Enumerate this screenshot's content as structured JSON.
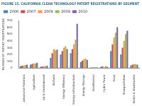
{
  "chart_data": {
    "type": "bar",
    "title": "FIGURE 15. CALIFORNIA CLEAN TECHNOLOGY PATENT REGISTRATIONS BY SEGMENT",
    "y_label": "NUMBER OF PATENT REGISTRATIONS",
    "categories": [
      "Advanced Materials",
      "Agriculture",
      "Air & Environment",
      "Biofuels",
      "Energy Efficiency",
      "Energy Infrastructure",
      "Energy Storage",
      "Geothermal",
      "Hydro Power",
      "Solar",
      "Transportation",
      "Water & Wastewater"
    ],
    "series": [
      {
        "name": "2006",
        "color": "#4f81bd",
        "values": [
          30,
          50,
          20,
          150,
          200,
          220,
          90,
          10,
          20,
          250,
          200,
          40
        ]
      },
      {
        "name": "2007",
        "color": "#c0504d",
        "values": [
          35,
          60,
          25,
          220,
          250,
          280,
          110,
          8,
          25,
          350,
          300,
          50
        ]
      },
      {
        "name": "2008",
        "color": "#f79646",
        "values": [
          40,
          70,
          30,
          280,
          300,
          350,
          130,
          12,
          15,
          450,
          400,
          60
        ]
      },
      {
        "name": "2009",
        "color": "#9bbb59",
        "values": [
          45,
          65,
          28,
          260,
          320,
          420,
          140,
          15,
          30,
          520,
          500,
          55
        ]
      },
      {
        "name": "2010",
        "color": "#8064a2",
        "values": [
          50,
          80,
          35,
          270,
          280,
          650,
          120,
          10,
          20,
          600,
          550,
          50
        ]
      }
    ],
    "ylim": [
      0,
      700
    ],
    "yticks": [
      0,
      100,
      200,
      300,
      400,
      500,
      600,
      700
    ],
    "grid": false,
    "legend": "top"
  }
}
